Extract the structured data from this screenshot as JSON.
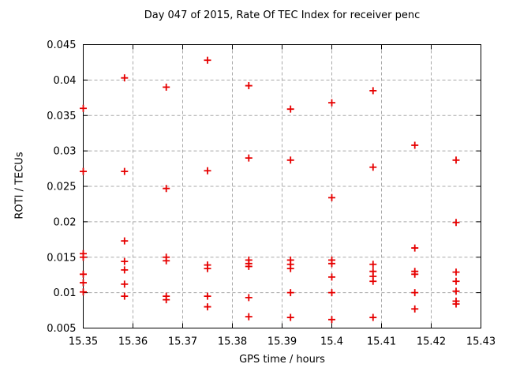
{
  "page": {
    "background": "#ffffff"
  },
  "chart_data": {
    "type": "scatter",
    "title": "Day 047 of 2015, Rate Of TEC Index for receiver penc",
    "xlabel": "GPS time / hours",
    "ylabel": "ROTI / TECUs",
    "xlim": [
      15.35,
      15.43
    ],
    "ylim": [
      0.005,
      0.045
    ],
    "xticks": [
      15.35,
      15.36,
      15.37,
      15.38,
      15.39,
      15.4,
      15.41,
      15.42,
      15.43
    ],
    "xtick_labels": [
      "15.35",
      "15.36",
      "15.37",
      "15.38",
      "15.39",
      "15.4",
      "15.41",
      "15.42",
      "15.43"
    ],
    "yticks": [
      0.005,
      0.01,
      0.015,
      0.02,
      0.025,
      0.03,
      0.035,
      0.04,
      0.045
    ],
    "ytick_labels": [
      "0.005",
      "0.01",
      "0.015",
      "0.02",
      "0.025",
      "0.03",
      "0.035",
      "0.04",
      "0.045"
    ],
    "grid": true,
    "legend": "none",
    "marker": "plus",
    "colors": {
      "marker": "#e60000",
      "grid": "#a9a9a9",
      "axis": "#000000",
      "text": "#000000",
      "background": "#ffffff"
    },
    "series": [
      {
        "name": "ROTI",
        "points": [
          [
            15.35,
            0.036
          ],
          [
            15.35,
            0.0271
          ],
          [
            15.35,
            0.0155
          ],
          [
            15.35,
            0.015
          ],
          [
            15.35,
            0.0126
          ],
          [
            15.35,
            0.0114
          ],
          [
            15.35,
            0.0101
          ],
          [
            15.3583,
            0.0403
          ],
          [
            15.3583,
            0.0271
          ],
          [
            15.3583,
            0.0173
          ],
          [
            15.3583,
            0.0144
          ],
          [
            15.3583,
            0.0132
          ],
          [
            15.3583,
            0.0112
          ],
          [
            15.3583,
            0.0095
          ],
          [
            15.3667,
            0.039
          ],
          [
            15.3667,
            0.0247
          ],
          [
            15.3667,
            0.015
          ],
          [
            15.3667,
            0.0145
          ],
          [
            15.3667,
            0.0095
          ],
          [
            15.3667,
            0.009
          ],
          [
            15.375,
            0.0428
          ],
          [
            15.375,
            0.0272
          ],
          [
            15.375,
            0.0139
          ],
          [
            15.375,
            0.0134
          ],
          [
            15.375,
            0.0095
          ],
          [
            15.375,
            0.008
          ],
          [
            15.3833,
            0.0392
          ],
          [
            15.3833,
            0.029
          ],
          [
            15.3833,
            0.0146
          ],
          [
            15.3833,
            0.0141
          ],
          [
            15.3833,
            0.0137
          ],
          [
            15.3833,
            0.0093
          ],
          [
            15.3833,
            0.0066
          ],
          [
            15.3917,
            0.0359
          ],
          [
            15.3917,
            0.0287
          ],
          [
            15.3917,
            0.0146
          ],
          [
            15.3917,
            0.014
          ],
          [
            15.3917,
            0.0134
          ],
          [
            15.3917,
            0.01
          ],
          [
            15.3917,
            0.0065
          ],
          [
            15.4,
            0.0368
          ],
          [
            15.4,
            0.0234
          ],
          [
            15.4,
            0.0146
          ],
          [
            15.4,
            0.0141
          ],
          [
            15.4,
            0.0122
          ],
          [
            15.4,
            0.01
          ],
          [
            15.4,
            0.0062
          ],
          [
            15.4083,
            0.0385
          ],
          [
            15.4083,
            0.0277
          ],
          [
            15.4083,
            0.014
          ],
          [
            15.4083,
            0.013
          ],
          [
            15.4083,
            0.0123
          ],
          [
            15.4083,
            0.0116
          ],
          [
            15.4083,
            0.0065
          ],
          [
            15.4167,
            0.0308
          ],
          [
            15.4167,
            0.0163
          ],
          [
            15.4167,
            0.013
          ],
          [
            15.4167,
            0.0126
          ],
          [
            15.4167,
            0.01
          ],
          [
            15.4167,
            0.0077
          ],
          [
            15.425,
            0.0287
          ],
          [
            15.425,
            0.0199
          ],
          [
            15.425,
            0.0129
          ],
          [
            15.425,
            0.0116
          ],
          [
            15.425,
            0.0102
          ],
          [
            15.425,
            0.0088
          ],
          [
            15.425,
            0.0084
          ]
        ]
      }
    ]
  }
}
